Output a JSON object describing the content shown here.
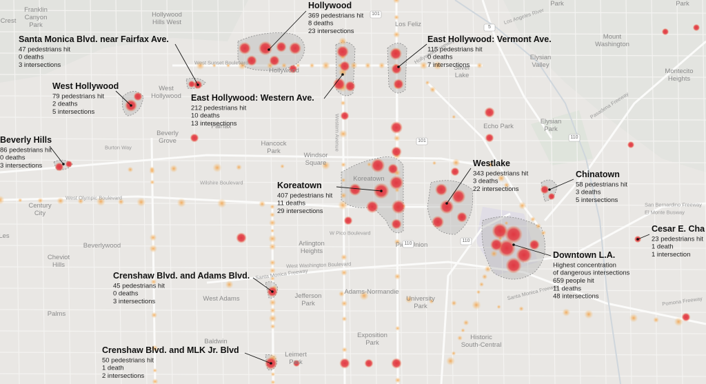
{
  "callouts": [
    {
      "title": "Hollywood",
      "lines": [
        "369 pedestrians hit",
        "8 deaths",
        "23 intersections"
      ]
    },
    {
      "title": "Santa Monica Blvd. near Fairfax Ave.",
      "lines": [
        "47 pedestrians hit",
        "0 deaths",
        "3 intersections"
      ]
    },
    {
      "title": "East Hollywood: Vermont Ave.",
      "lines": [
        "115 pedestrians hit",
        "0 deaths",
        "7 intersections"
      ]
    },
    {
      "title": "West Hollywood",
      "lines": [
        "79 pedestrians hit",
        "2 deaths",
        "5 intersections"
      ]
    },
    {
      "title": "East Hollywood: Western Ave.",
      "lines": [
        "212 pedestrians hit",
        "10 deaths",
        "13 intersections"
      ]
    },
    {
      "title": "Beverly Hills",
      "lines": [
        "86 pedestrians hit",
        "0 deaths",
        "3 intersections"
      ]
    },
    {
      "title": "Westlake",
      "lines": [
        "343 pedestrians hit",
        "3 deaths",
        "22 intersections"
      ]
    },
    {
      "title": "Koreatown",
      "lines": [
        "407 pedestrians hit",
        "11 deaths",
        "29 intersections"
      ]
    },
    {
      "title": "Chinatown",
      "lines": [
        "58 pedestrians hit",
        "3 deaths",
        "5 intersections"
      ]
    },
    {
      "title": "Cesar E. Cha",
      "lines": [
        "23 pedestrians hit",
        "1 death",
        "1 intersection"
      ]
    },
    {
      "title": "Downtown L.A.",
      "lines": [
        "Highest concentration",
        "of dangerous intersections",
        "659 people hit",
        "11 deaths",
        "48 intersections"
      ]
    },
    {
      "title": "Crenshaw Blvd. and Adams Blvd.",
      "lines": [
        "45 pedestrians hit",
        "0 deaths",
        "3 intersections"
      ]
    },
    {
      "title": "Crenshaw Blvd. and MLK Jr. Blvd",
      "lines": [
        "50 pedestrians hit",
        "1 death",
        "2 intersections"
      ]
    }
  ],
  "places": [
    [
      "Crest"
    ],
    [
      "Franklin",
      "Canyon",
      "Park"
    ],
    [
      "Hollywood",
      "Hills West"
    ],
    [
      "Hollywood"
    ],
    [
      "Los Feliz"
    ],
    [
      "Park"
    ],
    [
      "Park"
    ],
    [
      "Mount",
      "Washington"
    ],
    [
      "Elysian",
      "Valley"
    ],
    [
      "Montecito",
      "Heights"
    ],
    [
      "Silver",
      "Lake"
    ],
    [
      "West",
      "Hollywood"
    ],
    [
      "Fairfax"
    ],
    [
      "Echo Park"
    ],
    [
      "Elysian",
      "Park"
    ],
    [
      "Beverly",
      "Grove"
    ],
    [
      "Hancock",
      "Park"
    ],
    [
      "Windsor",
      "Square"
    ],
    [
      "Century",
      "City"
    ],
    [
      "Les"
    ],
    [
      "Beverlywood"
    ],
    [
      "Cheviot",
      "Hills"
    ],
    [
      "Arlington",
      "Heights"
    ],
    [
      "Pico-Union"
    ],
    [
      "West Adams"
    ],
    [
      "Jefferson",
      "Park"
    ],
    [
      "Adams-Normandie"
    ],
    [
      "University",
      "Park"
    ],
    [
      "Palms"
    ],
    [
      "Baldwin"
    ],
    [
      "Leimert",
      "Park"
    ],
    [
      "Exposition",
      "Park"
    ],
    [
      "Historic",
      "South-Central"
    ],
    [
      "Koreatown"
    ]
  ],
  "roads": [
    "West Sunset Boulevard",
    "Burton Way",
    "West Olympic Boulevard",
    "Wilshire Boulevard",
    "West Washington Boulevard",
    "Santa Monica Freeway",
    "Santa Monica Freeway",
    "Pasadena Freeway",
    "W Pico Boulevard",
    "Los Angeles River",
    "Pomona Freeway",
    "San Bernardino Freeway",
    "El Monte Busway",
    "Western Avenue",
    "Hollywood Freeway"
  ],
  "shields": [
    "101",
    "110",
    "5",
    "101",
    "110",
    "110"
  ]
}
